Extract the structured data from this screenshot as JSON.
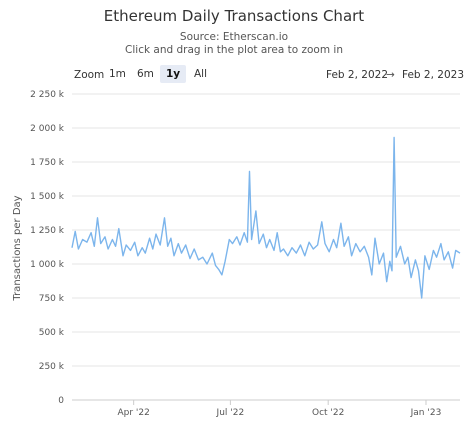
{
  "header": {
    "title": "Ethereum Daily Transactions Chart",
    "source": "Source: Etherscan.io",
    "hint": "Click and drag in the plot area to zoom in"
  },
  "controls": {
    "zoom_label": "Zoom",
    "zoom_buttons": [
      {
        "label": "1m",
        "selected": false
      },
      {
        "label": "6m",
        "selected": false
      },
      {
        "label": "1y",
        "selected": true
      },
      {
        "label": "All",
        "selected": false
      }
    ],
    "range_from": "Feb 2, 2022",
    "range_arrow": "→",
    "range_to": "Feb 2, 2023"
  },
  "chart_data": {
    "type": "line",
    "title": "Ethereum Daily Transactions Chart",
    "ylabel": "Transactions per Day",
    "ylim": [
      0,
      2250000
    ],
    "yticks": [
      {
        "value": 0,
        "label": "0"
      },
      {
        "value": 250000,
        "label": "250 k"
      },
      {
        "value": 500000,
        "label": "500 k"
      },
      {
        "value": 750000,
        "label": "750 k"
      },
      {
        "value": 1000000,
        "label": "1 000 k"
      },
      {
        "value": 1250000,
        "label": "1 250 k"
      },
      {
        "value": 1500000,
        "label": "1 500 k"
      },
      {
        "value": 1750000,
        "label": "1 750 k"
      },
      {
        "value": 2000000,
        "label": "2 000 k"
      },
      {
        "value": 2250000,
        "label": "2 250 k"
      }
    ],
    "xlim": [
      "2022-02-02",
      "2023-02-02"
    ],
    "xticks": [
      {
        "value": "2022-04-01",
        "label": "Apr '22"
      },
      {
        "value": "2022-07-01",
        "label": "Jul '22"
      },
      {
        "value": "2022-10-01",
        "label": "Oct '22"
      },
      {
        "value": "2023-01-01",
        "label": "Jan '23"
      }
    ],
    "grid": "horizontal",
    "color": "#7cb5ec",
    "series": [
      {
        "points": [
          [
            "2022-02-02",
            1120000
          ],
          [
            "2022-02-05",
            1240000
          ],
          [
            "2022-02-08",
            1110000
          ],
          [
            "2022-02-12",
            1180000
          ],
          [
            "2022-02-16",
            1160000
          ],
          [
            "2022-02-20",
            1230000
          ],
          [
            "2022-02-23",
            1130000
          ],
          [
            "2022-02-26",
            1340000
          ],
          [
            "2022-03-01",
            1150000
          ],
          [
            "2022-03-05",
            1200000
          ],
          [
            "2022-03-08",
            1110000
          ],
          [
            "2022-03-12",
            1180000
          ],
          [
            "2022-03-15",
            1130000
          ],
          [
            "2022-03-18",
            1260000
          ],
          [
            "2022-03-22",
            1060000
          ],
          [
            "2022-03-25",
            1140000
          ],
          [
            "2022-03-29",
            1100000
          ],
          [
            "2022-04-02",
            1160000
          ],
          [
            "2022-04-05",
            1060000
          ],
          [
            "2022-04-09",
            1120000
          ],
          [
            "2022-04-12",
            1080000
          ],
          [
            "2022-04-16",
            1190000
          ],
          [
            "2022-04-19",
            1110000
          ],
          [
            "2022-04-22",
            1220000
          ],
          [
            "2022-04-26",
            1140000
          ],
          [
            "2022-04-30",
            1340000
          ],
          [
            "2022-05-03",
            1130000
          ],
          [
            "2022-05-06",
            1190000
          ],
          [
            "2022-05-09",
            1060000
          ],
          [
            "2022-05-13",
            1150000
          ],
          [
            "2022-05-16",
            1080000
          ],
          [
            "2022-05-20",
            1140000
          ],
          [
            "2022-05-24",
            1040000
          ],
          [
            "2022-05-28",
            1110000
          ],
          [
            "2022-06-01",
            1030000
          ],
          [
            "2022-06-05",
            1050000
          ],
          [
            "2022-06-09",
            1000000
          ],
          [
            "2022-06-14",
            1080000
          ],
          [
            "2022-06-17",
            990000
          ],
          [
            "2022-06-20",
            960000
          ],
          [
            "2022-06-23",
            920000
          ],
          [
            "2022-06-26",
            1020000
          ],
          [
            "2022-06-30",
            1180000
          ],
          [
            "2022-07-03",
            1150000
          ],
          [
            "2022-07-07",
            1200000
          ],
          [
            "2022-07-10",
            1140000
          ],
          [
            "2022-07-14",
            1230000
          ],
          [
            "2022-07-17",
            1160000
          ],
          [
            "2022-07-19",
            1680000
          ],
          [
            "2022-07-21",
            1180000
          ],
          [
            "2022-07-25",
            1390000
          ],
          [
            "2022-07-28",
            1150000
          ],
          [
            "2022-08-01",
            1220000
          ],
          [
            "2022-08-04",
            1120000
          ],
          [
            "2022-08-07",
            1180000
          ],
          [
            "2022-08-11",
            1100000
          ],
          [
            "2022-08-14",
            1230000
          ],
          [
            "2022-08-17",
            1090000
          ],
          [
            "2022-08-20",
            1110000
          ],
          [
            "2022-08-24",
            1060000
          ],
          [
            "2022-08-28",
            1120000
          ],
          [
            "2022-09-01",
            1080000
          ],
          [
            "2022-09-05",
            1140000
          ],
          [
            "2022-09-09",
            1060000
          ],
          [
            "2022-09-13",
            1160000
          ],
          [
            "2022-09-17",
            1110000
          ],
          [
            "2022-09-21",
            1140000
          ],
          [
            "2022-09-25",
            1310000
          ],
          [
            "2022-09-28",
            1150000
          ],
          [
            "2022-10-02",
            1090000
          ],
          [
            "2022-10-06",
            1180000
          ],
          [
            "2022-10-09",
            1120000
          ],
          [
            "2022-10-13",
            1300000
          ],
          [
            "2022-10-16",
            1130000
          ],
          [
            "2022-10-20",
            1200000
          ],
          [
            "2022-10-23",
            1060000
          ],
          [
            "2022-10-27",
            1150000
          ],
          [
            "2022-10-31",
            1090000
          ],
          [
            "2022-11-04",
            1130000
          ],
          [
            "2022-11-08",
            1050000
          ],
          [
            "2022-11-11",
            920000
          ],
          [
            "2022-11-14",
            1190000
          ],
          [
            "2022-11-18",
            1000000
          ],
          [
            "2022-11-22",
            1080000
          ],
          [
            "2022-11-25",
            870000
          ],
          [
            "2022-11-28",
            1020000
          ],
          [
            "2022-11-30",
            950000
          ],
          [
            "2022-12-02",
            1930000
          ],
          [
            "2022-12-04",
            1050000
          ],
          [
            "2022-12-08",
            1130000
          ],
          [
            "2022-12-12",
            1000000
          ],
          [
            "2022-12-15",
            1050000
          ],
          [
            "2022-12-18",
            900000
          ],
          [
            "2022-12-22",
            1030000
          ],
          [
            "2022-12-25",
            950000
          ],
          [
            "2022-12-28",
            750000
          ],
          [
            "2022-12-31",
            1060000
          ],
          [
            "2023-01-04",
            960000
          ],
          [
            "2023-01-08",
            1100000
          ],
          [
            "2023-01-11",
            1050000
          ],
          [
            "2023-01-15",
            1150000
          ],
          [
            "2023-01-18",
            1030000
          ],
          [
            "2023-01-22",
            1090000
          ],
          [
            "2023-01-26",
            970000
          ],
          [
            "2023-01-29",
            1100000
          ],
          [
            "2023-02-02",
            1080000
          ]
        ]
      }
    ]
  }
}
